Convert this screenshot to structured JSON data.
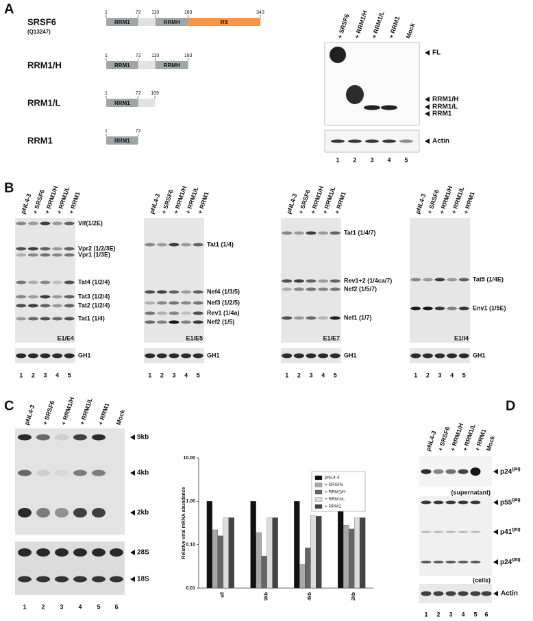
{
  "panel_labels": [
    "A",
    "B",
    "C",
    "D"
  ],
  "panel_a": {
    "constructs": [
      {
        "name": "SRSF6",
        "accession": "(Q13247)",
        "domains": [
          {
            "label": "RRM1",
            "start": 1,
            "end": 72
          },
          {
            "label": "RRMH",
            "start": 110,
            "end": 183
          },
          {
            "label": "RS",
            "start": 183,
            "end": 343
          }
        ],
        "ticks": [
          1,
          72,
          110,
          183,
          343
        ]
      },
      {
        "name": "RRM1/H",
        "domains": [
          {
            "label": "RRM1",
            "start": 1,
            "end": 72
          },
          {
            "label": "RRMH",
            "start": 110,
            "end": 183
          }
        ],
        "ticks": [
          1,
          72,
          110,
          183
        ]
      },
      {
        "name": "RRM1/L",
        "domains": [
          {
            "label": "RRM1",
            "start": 1,
            "end": 72
          }
        ],
        "ticks": [
          1,
          72,
          109
        ]
      },
      {
        "name": "RRM1",
        "domains": [
          {
            "label": "RRM1",
            "start": 1,
            "end": 72
          }
        ],
        "ticks": [
          1,
          72
        ]
      }
    ],
    "blot": {
      "lanes": [
        "+ SRSF6",
        "+ RRM1/H",
        "+ RRM1/L",
        "+ RRM1",
        "Mock"
      ],
      "bands": [
        "FL",
        "RRM1/H",
        "RRM1/L",
        "RRM1"
      ],
      "loading": "Actin",
      "lane_numbers": [
        1,
        2,
        3,
        4,
        5
      ]
    }
  },
  "panel_b": {
    "gels": [
      {
        "lanes": [
          "pNL4-3",
          "+ SRSF6",
          "+ RRM1/H",
          "+ RRM1/L",
          "+ RRM1"
        ],
        "bands": [
          "Vif(1/2E)",
          "Vpr2 (1/2/3E)",
          "Vpr1 (1/3E)",
          "Tat4 (1/2/4)",
          "Tat3 (1/2/4)",
          "Tat2 (1/2/4)",
          "Tat1 (1/4)"
        ],
        "primers": "E1/E4",
        "loading": "GH1",
        "lane_numbers": [
          1,
          2,
          3,
          4,
          5
        ]
      },
      {
        "lanes": [
          "pNL4-3",
          "+ SRSF6",
          "+ RRM1/H",
          "+ RRM1/L",
          "+ RRM1"
        ],
        "bands": [
          "Tat1 (1/4)",
          "Nef4 (1/3/5)",
          "Nef3 (1/2/5)",
          "Rev1 (1/4a)",
          "Nef2 (1/5)"
        ],
        "primers": "E1/E5",
        "loading": "GH1",
        "lane_numbers": [
          1,
          2,
          3,
          4,
          5
        ]
      },
      {
        "lanes": [
          "pNL4-3",
          "+ SRSF6",
          "+ RRM1/H",
          "+ RRM1/L",
          "+ RRM1"
        ],
        "bands": [
          "Tat1 (1/4/7)",
          "Rev1+2 (1/4ca/7)",
          "Nef2 (1/5/7)",
          "Nef1 (1/7)"
        ],
        "primers": "E1/E7",
        "loading": "GH1",
        "lane_numbers": [
          1,
          2,
          3,
          4,
          5
        ]
      },
      {
        "lanes": [
          "pNL4-3",
          "+ SRSF6",
          "+ RRM1/H",
          "+ RRM1/L",
          "+ RRM1"
        ],
        "bands": [
          "Tat5 (1/4E)",
          "Env1 (1/5E)"
        ],
        "primers": "E1/I4",
        "loading": "GH1",
        "lane_numbers": [
          1,
          2,
          3,
          4,
          5
        ]
      }
    ]
  },
  "panel_c": {
    "blot": {
      "lanes": [
        "pNL4-3",
        "+ SRSF6",
        "+ RRM1/H",
        "+ RRM1/L",
        "+ RRM1",
        "Mock"
      ],
      "bands": [
        "9kb",
        "4kb",
        "2kb"
      ],
      "loading_bands": [
        "28S",
        "18S"
      ],
      "lane_numbers": [
        1,
        2,
        3,
        4,
        5,
        6
      ]
    }
  },
  "chart_data": {
    "type": "bar",
    "y_label": "Relative viral mRNA abundance",
    "log_y": true,
    "categories": [
      "all",
      "9kb",
      "4kb",
      "2kb"
    ],
    "series": [
      {
        "name": "pNL4-3",
        "color": "#111111",
        "values": [
          1,
          1,
          1,
          1
        ]
      },
      {
        "name": "+ SRSF6",
        "color": "#a8a8a8",
        "values": [
          0.22,
          0.19,
          0.035,
          0.28
        ]
      },
      {
        "name": "+ RRM1/H",
        "color": "#666666",
        "values": [
          0.16,
          0.055,
          0.085,
          0.23
        ]
      },
      {
        "name": "+ RRM1/L",
        "color": "#dcdcdc",
        "values": [
          0.42,
          0.42,
          0.48,
          0.42
        ]
      },
      {
        "name": "+ RRM1",
        "color": "#444444",
        "values": [
          0.42,
          0.42,
          0.45,
          0.42
        ]
      }
    ],
    "ylim": [
      0.01,
      10
    ],
    "yticks": [
      {
        "value": 10,
        "label": "10.00"
      },
      {
        "value": 1,
        "label": "1.00"
      },
      {
        "value": 0.1,
        "label": "0.10"
      },
      {
        "value": 0.01,
        "label": "0.01"
      }
    ]
  },
  "panel_d": {
    "lanes": [
      "pNL4-3",
      "+ SRSF6",
      "+ RRM1/H",
      "+ RRM1/L",
      "+ RRM1",
      "Mock"
    ],
    "supernatant": {
      "bands": [
        {
          "name": "p24",
          "sup": "gag"
        }
      ],
      "note": "(supernatant)"
    },
    "cells": {
      "bands": [
        {
          "name": "p55",
          "sup": "gag"
        },
        {
          "name": "p41",
          "sup": "gag"
        },
        {
          "name": "p24",
          "sup": "gag"
        }
      ],
      "note": "(cells)"
    },
    "loading": "Actin",
    "lane_numbers": [
      1,
      2,
      3,
      4,
      5,
      6
    ]
  }
}
